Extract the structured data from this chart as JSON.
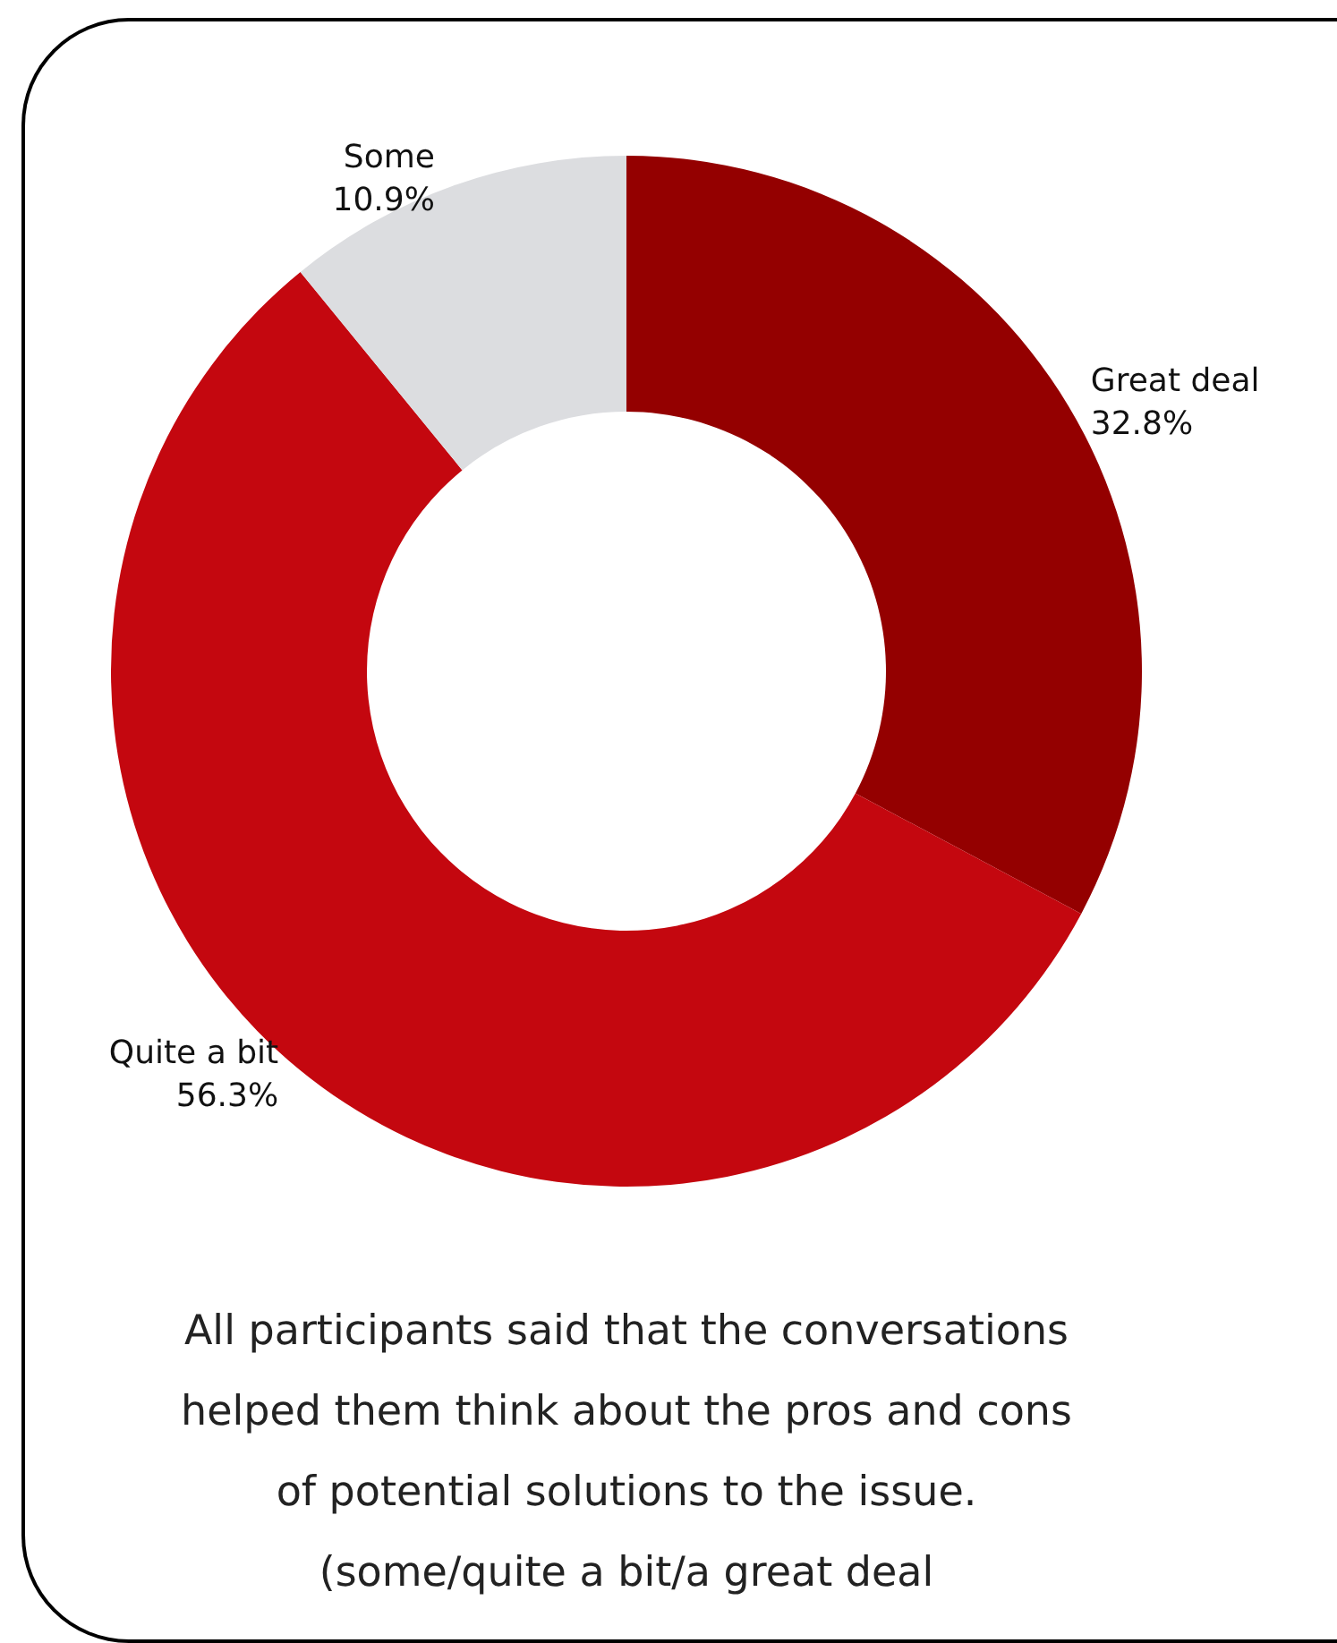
{
  "chart_data": {
    "type": "donut",
    "categories": [
      "Great deal",
      "Quite a bit",
      "Some"
    ],
    "values": [
      32.8,
      56.3,
      10.9
    ],
    "colors": [
      "#940000",
      "#c4070f",
      "#dcdde0"
    ],
    "value_labels": [
      "32.8%",
      "56.3%",
      "10.9%"
    ],
    "annotations": [
      "All participants said that the conversations",
      "helped them think about the pros and cons",
      "of potential solutions to the issue.",
      "(some/quite a bit/a great deal"
    ]
  }
}
